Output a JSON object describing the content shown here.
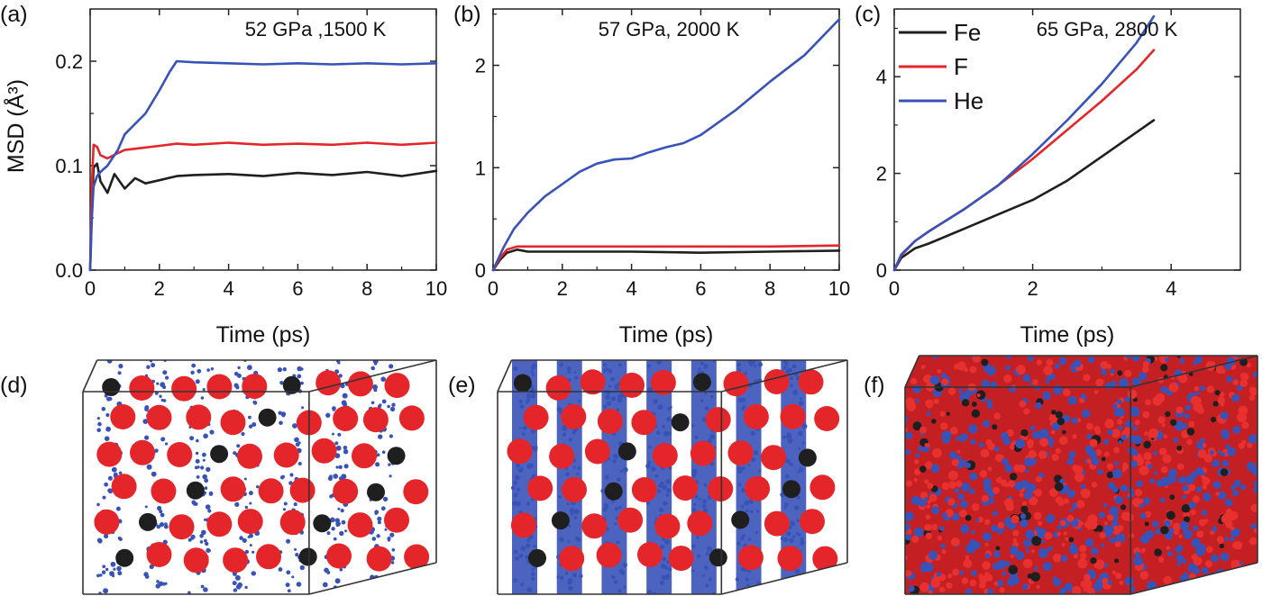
{
  "chart_data": [
    {
      "panel": "(a)",
      "type": "line",
      "annotation": "52 GPa ,1500 K",
      "xlabel": "Time (ps)",
      "ylabel": "MSD (Å³)",
      "xlim": [
        0,
        10
      ],
      "ylim": [
        0,
        0.25
      ],
      "xticks": [
        "0",
        "2",
        "4",
        "6",
        "8",
        "10"
      ],
      "yticks": [
        "0.0",
        "0.1",
        "0.2"
      ],
      "series": [
        {
          "color": "#1f1f1f",
          "x": [
            0,
            0.05,
            0.1,
            0.2,
            0.3,
            0.5,
            0.7,
            1.0,
            1.3,
            1.6,
            2.0,
            2.5,
            3,
            4,
            5,
            6,
            7,
            8,
            9,
            10
          ],
          "y": [
            0,
            0.06,
            0.098,
            0.102,
            0.085,
            0.074,
            0.092,
            0.078,
            0.088,
            0.083,
            0.086,
            0.09,
            0.091,
            0.092,
            0.09,
            0.093,
            0.091,
            0.094,
            0.09,
            0.095
          ]
        },
        {
          "color": "#e4262a",
          "x": [
            0,
            0.05,
            0.1,
            0.2,
            0.3,
            0.5,
            0.8,
            1.0,
            1.5,
            2.0,
            2.5,
            3,
            4,
            5,
            6,
            7,
            8,
            9,
            10
          ],
          "y": [
            0,
            0.08,
            0.12,
            0.118,
            0.11,
            0.107,
            0.112,
            0.115,
            0.117,
            0.119,
            0.121,
            0.12,
            0.122,
            0.12,
            0.121,
            0.12,
            0.122,
            0.12,
            0.122
          ]
        },
        {
          "color": "#3853b8",
          "x": [
            0,
            0.05,
            0.1,
            0.2,
            0.3,
            0.5,
            0.8,
            1.0,
            1.3,
            1.6,
            2.0,
            2.3,
            2.5,
            3,
            4,
            5,
            6,
            7,
            8,
            9,
            10
          ],
          "y": [
            0,
            0.05,
            0.08,
            0.09,
            0.094,
            0.1,
            0.115,
            0.13,
            0.14,
            0.15,
            0.172,
            0.19,
            0.2,
            0.199,
            0.198,
            0.197,
            0.198,
            0.197,
            0.198,
            0.197,
            0.198
          ]
        }
      ]
    },
    {
      "panel": "(b)",
      "type": "line",
      "annotation": "57 GPa, 2000 K",
      "xlabel": "Time (ps)",
      "xlim": [
        0,
        10
      ],
      "ylim": [
        0,
        2.55
      ],
      "xticks": [
        "0",
        "2",
        "4",
        "6",
        "8",
        "10"
      ],
      "yticks": [
        "0",
        "1",
        "2"
      ],
      "series": [
        {
          "color": "#1f1f1f",
          "x": [
            0,
            0.2,
            0.4,
            0.7,
            1,
            2,
            4,
            6,
            8,
            10
          ],
          "y": [
            0,
            0.1,
            0.17,
            0.2,
            0.18,
            0.18,
            0.18,
            0.17,
            0.18,
            0.19
          ]
        },
        {
          "color": "#e4262a",
          "x": [
            0,
            0.2,
            0.4,
            0.7,
            1,
            2,
            4,
            6,
            8,
            10
          ],
          "y": [
            0,
            0.12,
            0.2,
            0.23,
            0.23,
            0.23,
            0.23,
            0.23,
            0.23,
            0.24
          ]
        },
        {
          "color": "#3853b8",
          "x": [
            0,
            0.3,
            0.6,
            1,
            1.5,
            2,
            2.5,
            3,
            3.5,
            4,
            4.5,
            5,
            5.5,
            6,
            7,
            8,
            9,
            10
          ],
          "y": [
            0,
            0.22,
            0.4,
            0.56,
            0.72,
            0.84,
            0.96,
            1.04,
            1.08,
            1.09,
            1.15,
            1.2,
            1.24,
            1.32,
            1.56,
            1.84,
            2.1,
            2.45
          ]
        }
      ]
    },
    {
      "panel": "(c)",
      "type": "line",
      "annotation": "65 GPa, 2800 K",
      "xlabel": "Time (ps)",
      "xlim": [
        0,
        5
      ],
      "ylim": [
        0,
        5.4
      ],
      "xticks": [
        "0",
        "2",
        "4"
      ],
      "yticks": [
        "0",
        "2",
        "4"
      ],
      "legend": [
        "Fe",
        "F",
        "He"
      ],
      "series": [
        {
          "name": "Fe",
          "color": "#1f1f1f",
          "x": [
            0,
            0.1,
            0.3,
            0.5,
            1,
            1.5,
            2,
            2.5,
            3,
            3.5,
            3.75
          ],
          "y": [
            0,
            0.25,
            0.45,
            0.55,
            0.85,
            1.15,
            1.45,
            1.85,
            2.35,
            2.85,
            3.1
          ]
        },
        {
          "name": "F",
          "color": "#e4262a",
          "x": [
            0,
            0.1,
            0.3,
            0.5,
            1,
            1.5,
            2,
            2.5,
            3,
            3.5,
            3.75
          ],
          "y": [
            0,
            0.3,
            0.6,
            0.8,
            1.25,
            1.75,
            2.3,
            2.9,
            3.5,
            4.15,
            4.55
          ]
        },
        {
          "name": "He",
          "color": "#3853b8",
          "x": [
            0,
            0.1,
            0.3,
            0.5,
            1,
            1.5,
            2,
            2.5,
            3,
            3.5,
            3.75
          ],
          "y": [
            0,
            0.32,
            0.6,
            0.8,
            1.25,
            1.75,
            2.4,
            3.1,
            3.85,
            4.7,
            5.25
          ]
        }
      ]
    }
  ],
  "snapshots": [
    {
      "panel": "(d)"
    },
    {
      "panel": "(e)"
    },
    {
      "panel": "(f)"
    }
  ],
  "colors": {
    "Fe": "#1f1f1f",
    "F": "#e4262a",
    "He": "#3853b8",
    "box": "#333333"
  }
}
